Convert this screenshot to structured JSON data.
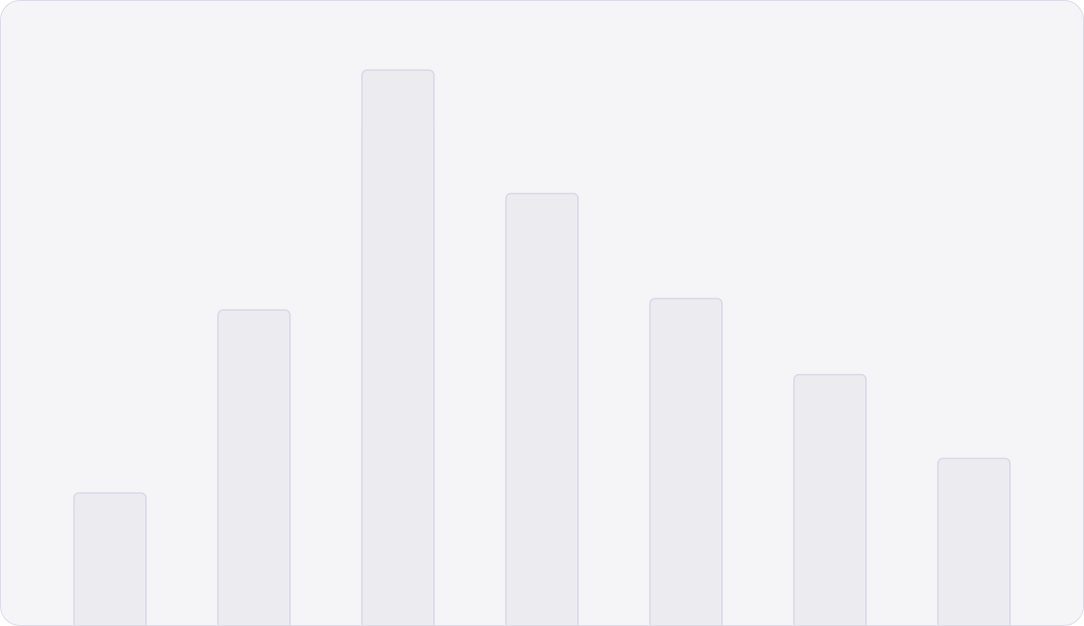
{
  "chart_data": {
    "type": "bar",
    "categories": [
      "",
      "",
      "",
      "",
      "",
      "",
      ""
    ],
    "values": [
      138,
      328,
      577,
      449,
      340,
      261,
      174
    ],
    "ylim": [
      0,
      600
    ],
    "grid": false,
    "title": "",
    "xlabel": "",
    "ylabel": "",
    "colors": {
      "background": "#f5f5f8",
      "bar_fill": "#ebebf0",
      "bar_stroke": "#dcd8e6",
      "border": "#dedbe8"
    }
  }
}
